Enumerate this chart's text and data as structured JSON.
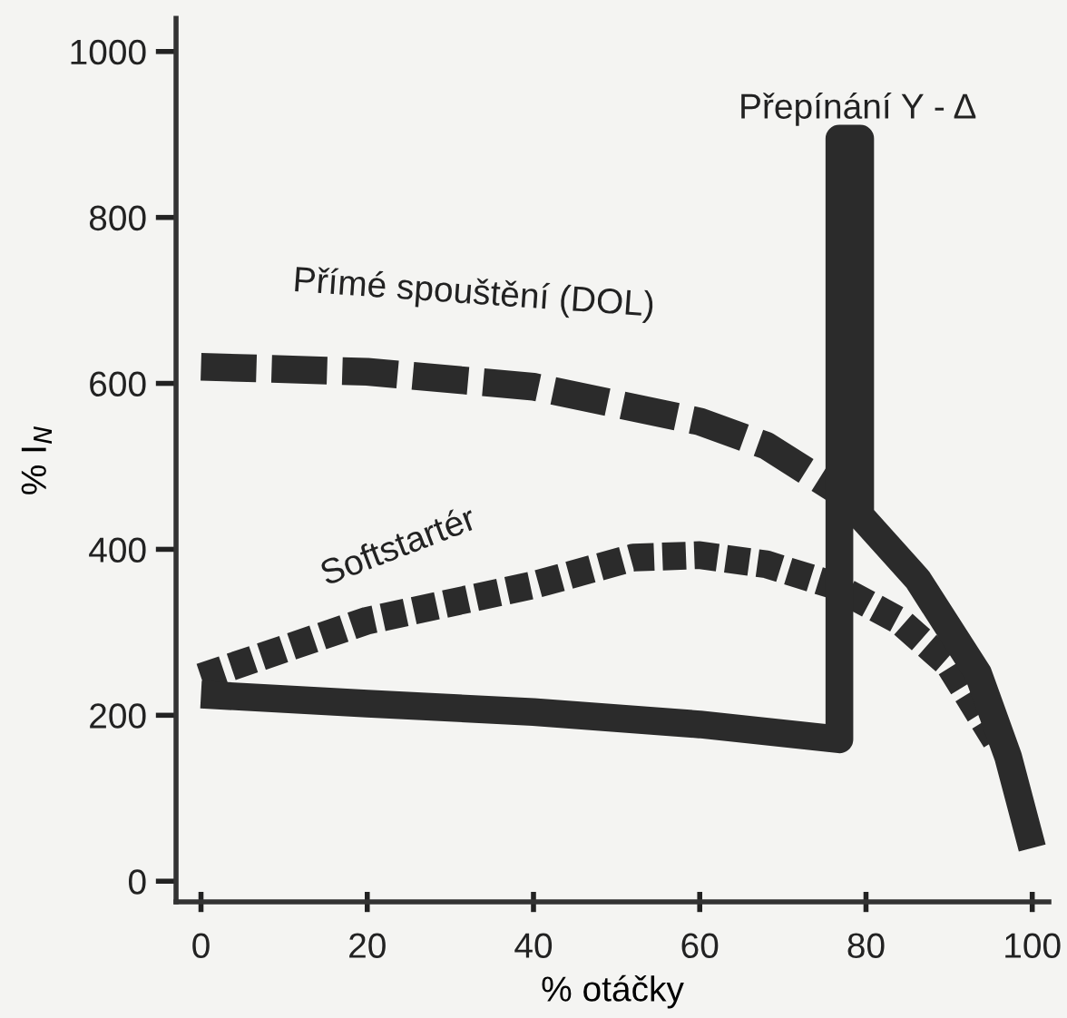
{
  "chart_data": {
    "type": "line",
    "xlabel": "% otáčky",
    "ylabel": "% I$_{N}$",
    "xlim": [
      -3,
      102
    ],
    "ylim": [
      -25,
      1040
    ],
    "xticks": [
      0,
      20,
      40,
      60,
      80,
      100
    ],
    "yticks": [
      0,
      200,
      400,
      600,
      800,
      1000
    ],
    "grid": false,
    "legend": false,
    "marker": "none",
    "series": [
      {
        "name": "Přímé spouštění (DOL)",
        "color": "#2b2b2b",
        "line_style": "dashed",
        "x": [
          0,
          20,
          40,
          60,
          68,
          76.5
        ],
        "values": [
          620,
          614,
          596,
          554,
          525,
          471
        ]
      },
      {
        "name": "Softstartér",
        "color": "#2b2b2b",
        "line_style": "dotted",
        "x": [
          0,
          20,
          40,
          52,
          60,
          68,
          76,
          84,
          90,
          95.6
        ],
        "values": [
          246,
          314,
          357,
          390,
          393,
          382,
          357,
          314,
          261,
          170
        ]
      },
      {
        "name": "Přepínání Y - Δ",
        "color": "#2b2b2b",
        "line_style": "solid",
        "x": [
          0,
          20,
          40,
          60,
          76.8,
          76.8,
          79.3,
          79.3,
          86.2,
          93.5,
          97.1,
          100
        ],
        "values": [
          225,
          214,
          204,
          189,
          171,
          895,
          895,
          441,
          364,
          250,
          150,
          40
        ]
      }
    ]
  }
}
